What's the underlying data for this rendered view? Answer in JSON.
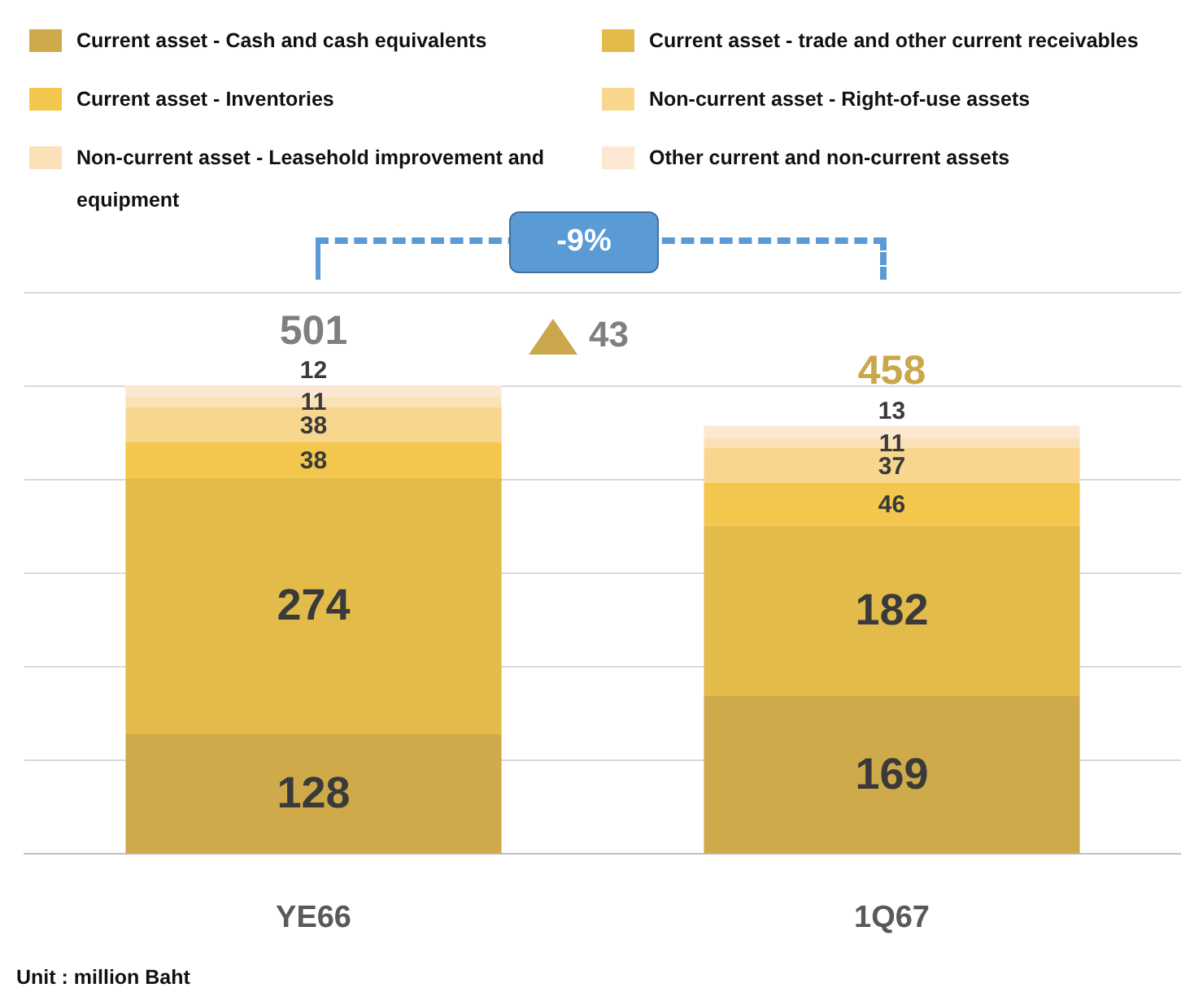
{
  "chart_data": {
    "type": "bar",
    "stacked": true,
    "categories": [
      "YE66",
      "1Q67"
    ],
    "series": [
      {
        "name": "Current asset - Cash and cash equivalents",
        "color": "#cfaa4a",
        "values": [
          128,
          169
        ]
      },
      {
        "name": "Current asset - trade and other current receivables",
        "color": "#e2bb4a",
        "values": [
          274,
          182
        ]
      },
      {
        "name": "Current asset - Inventories",
        "color": "#f3c74d",
        "values": [
          38,
          46
        ]
      },
      {
        "name": "Non-current asset - Right-of-use assets",
        "color": "#f9d68e",
        "values": [
          38,
          37
        ]
      },
      {
        "name": "Non-current asset - Leasehold improvement and equipment",
        "color": "#fbe1b8",
        "values": [
          11,
          11
        ]
      },
      {
        "name": "Other current and non-current assets",
        "color": "#fce8d2",
        "values": [
          12,
          13
        ]
      }
    ],
    "data_labels": true,
    "totals": [
      "501",
      "458"
    ],
    "grid": "y",
    "legend": "top",
    "annotations": [
      "-9%",
      "43",
      "Unit : million Baht"
    ]
  }
}
